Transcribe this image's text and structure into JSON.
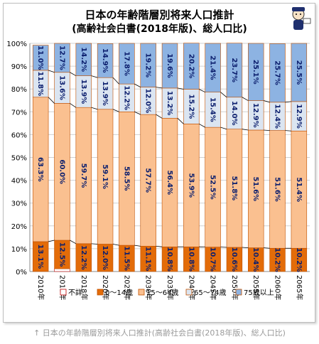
{
  "title_line1": "日本の年齢階層別将来人口推計",
  "title_line2": "(高齢社会白書(2018年版)、総人口比)",
  "caption": "↑ 日本の年齢階層別将来人口推計(高齢社会白書(2018年版)、総人口比)",
  "chart_data": {
    "type": "bar",
    "stacked": true,
    "categories": [
      "2010年",
      "2015年",
      "2018年",
      "2020年",
      "2025年",
      "2030年",
      "2035年",
      "2040年",
      "2045年",
      "2050年",
      "2055年",
      "2060年",
      "2065年"
    ],
    "series": [
      {
        "name": "不詳",
        "color": "#ffffff",
        "values": [
          0,
          1.2,
          0,
          0,
          0,
          0,
          0,
          0,
          0,
          0,
          0,
          0,
          0
        ]
      },
      {
        "name": "0〜14歳",
        "color": "#e36c09",
        "values": [
          13.1,
          12.5,
          12.2,
          12.0,
          11.5,
          11.1,
          10.8,
          10.8,
          10.7,
          10.6,
          10.4,
          10.2,
          10.2
        ]
      },
      {
        "name": "15〜64歳",
        "color": "#fac090",
        "values": [
          63.3,
          60.0,
          59.7,
          59.1,
          58.5,
          57.7,
          56.4,
          53.9,
          52.5,
          51.8,
          51.6,
          51.6,
          51.4
        ]
      },
      {
        "name": "65〜74歳",
        "color": "#dbe5f1",
        "values": [
          11.8,
          13.6,
          13.9,
          13.9,
          12.2,
          12.0,
          13.2,
          15.2,
          15.4,
          14.0,
          12.9,
          12.4,
          12.9
        ]
      },
      {
        "name": "75歳以上",
        "color": "#8db3e2",
        "values": [
          11.0,
          12.7,
          14.2,
          14.9,
          17.8,
          19.2,
          19.6,
          20.2,
          21.4,
          23.7,
          25.1,
          25.7,
          25.5
        ]
      }
    ],
    "value_labels": {
      "0〜14歳": [
        "13.1%",
        "12.5%",
        "12.2%",
        "12.0%",
        "11.5%",
        "11.1%",
        "10.8%",
        "10.8%",
        "10.7%",
        "10.6%",
        "10.4%",
        "10.2%",
        "10.2%"
      ],
      "15〜64歳": [
        "63.3%",
        "60.0%",
        "59.7%",
        "59.1%",
        "58.5%",
        "57.7%",
        "56.4%",
        "53.9%",
        "52.5%",
        "51.8%",
        "51.6%",
        "51.6%",
        "51.4%"
      ],
      "65〜74歳": [
        "11.8%",
        "13.6%",
        "13.9%",
        "13.9%",
        "12.2%",
        "12.0%",
        "13.2%",
        "15.2%",
        "15.4%",
        "14.0%",
        "12.9%",
        "12.4%",
        "12.9%"
      ],
      "75歳以上": [
        "11.0%",
        "12.7%",
        "14.2%",
        "14.9%",
        "17.8%",
        "19.2%",
        "19.6%",
        "20.2%",
        "21.4%",
        "23.7%",
        "25.1%",
        "25.7%",
        "25.5%"
      ]
    },
    "yticks": [
      "0%",
      "10%",
      "20%",
      "30%",
      "40%",
      "50%",
      "60%",
      "70%",
      "80%",
      "90%",
      "100%"
    ],
    "ylim": [
      0,
      100
    ],
    "grid": true,
    "legend": "bottom",
    "label_color": "#0c1f6e",
    "connector_lines": true
  }
}
